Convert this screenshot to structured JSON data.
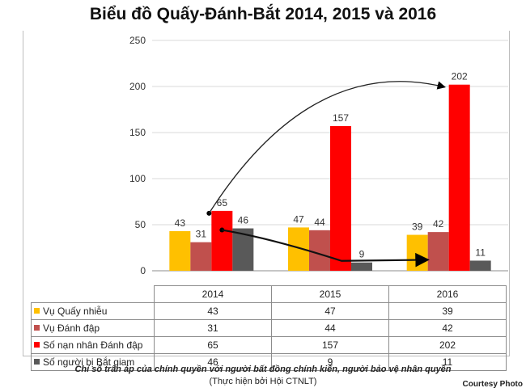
{
  "title": "Biểu đồ Quấy-Đánh-Bắt 2014, 2015 và 2016",
  "chart_data": {
    "type": "bar",
    "title": "Biểu đồ Quấy-Đánh-Bắt 2014, 2015 và 2016",
    "categories": [
      "2014",
      "2015",
      "2016"
    ],
    "ylim": [
      0,
      250
    ],
    "yticks": [
      0,
      50,
      100,
      150,
      200,
      250
    ],
    "grid": true,
    "legend": "data-table",
    "series": [
      {
        "name": "Vụ Quấy nhiễu",
        "values": [
          43,
          47,
          39
        ],
        "labels": [
          "43",
          "47",
          "39"
        ],
        "color": "#ffc000"
      },
      {
        "name": "Vụ Đánh đập",
        "values": [
          31,
          44,
          42
        ],
        "labels": [
          "31",
          "44",
          "42"
        ],
        "color": "#c0504d"
      },
      {
        "name": "Số nạn nhân Đánh đập",
        "values": [
          65,
          157,
          202
        ],
        "labels": [
          "65",
          "157",
          "202"
        ],
        "color": "#ff0000"
      },
      {
        "name": "Số người bị Bắt giam",
        "values": [
          46,
          9,
          11
        ],
        "labels": [
          "46",
          "9",
          "11"
        ],
        "color": "#595959"
      }
    ]
  },
  "caption": "Chỉ số trấn áp của chính quyền với người bất đồng chính kiến, người bảo vệ nhân quyền",
  "credit": "(Thực hiện bởi Hội CTNLT)",
  "courtesy": "Courtesy Photo"
}
